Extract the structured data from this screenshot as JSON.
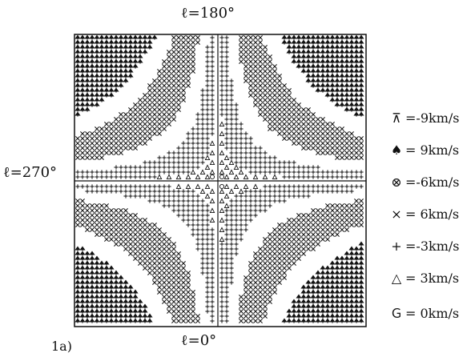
{
  "labels": {
    "top": "ℓ=180°",
    "bottom": "ℓ=0°",
    "left": "ℓ=270°",
    "caption": "1a)"
  },
  "legend": [
    {
      "symbol": "⊼",
      "text": "=-9km/s"
    },
    {
      "symbol": "♠",
      "text": "= 9km/s"
    },
    {
      "symbol": "⊗",
      "text": "=-6km/s"
    },
    {
      "symbol": "×",
      "text": "= 6km/s"
    },
    {
      "symbol": "+",
      "text": "=-3km/s"
    },
    {
      "symbol": "△",
      "text": "= 3km/s"
    },
    {
      "symbol": "Ｇ",
      "text": "= 0km/s"
    }
  ],
  "colors": {
    "ink": "#111111",
    "background": "#ffffff"
  }
}
